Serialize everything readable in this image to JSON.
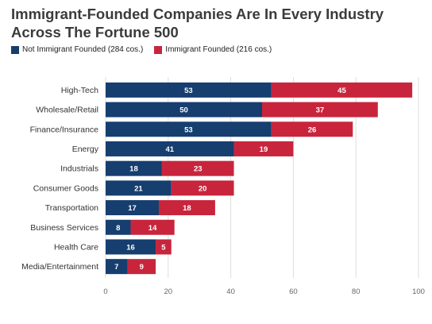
{
  "title": "Immigrant-Founded Companies Are In Every Industry Across The Fortune 500",
  "colors": {
    "not_immigrant": "#163e6f",
    "immigrant": "#c8253d",
    "grid": "#dddddd"
  },
  "legend": [
    {
      "label": "Not Immigrant Founded (284 cos.)",
      "color": "#163e6f"
    },
    {
      "label": "Immigrant Founded (216 cos.)",
      "color": "#c8253d"
    }
  ],
  "chart_data": {
    "type": "bar",
    "orientation": "horizontal",
    "stacked": true,
    "title": "Immigrant-Founded Companies Are In Every Industry Across The Fortune 500",
    "categories": [
      "High-Tech",
      "Wholesale/Retail",
      "Finance/Insurance",
      "Energy",
      "Industrials",
      "Consumer Goods",
      "Transportation",
      "Business Services",
      "Health Care",
      "Media/Entertainment"
    ],
    "series": [
      {
        "name": "Not Immigrant Founded (284 cos.)",
        "values": [
          53,
          50,
          53,
          41,
          18,
          21,
          17,
          8,
          16,
          7
        ]
      },
      {
        "name": "Immigrant Founded (216 cos.)",
        "values": [
          45,
          37,
          26,
          19,
          23,
          20,
          18,
          14,
          5,
          9
        ]
      }
    ],
    "xlim": [
      0,
      100
    ],
    "xticks": [
      0,
      20,
      40,
      60,
      80,
      100
    ],
    "grid": true,
    "legend_position": "top-left"
  }
}
